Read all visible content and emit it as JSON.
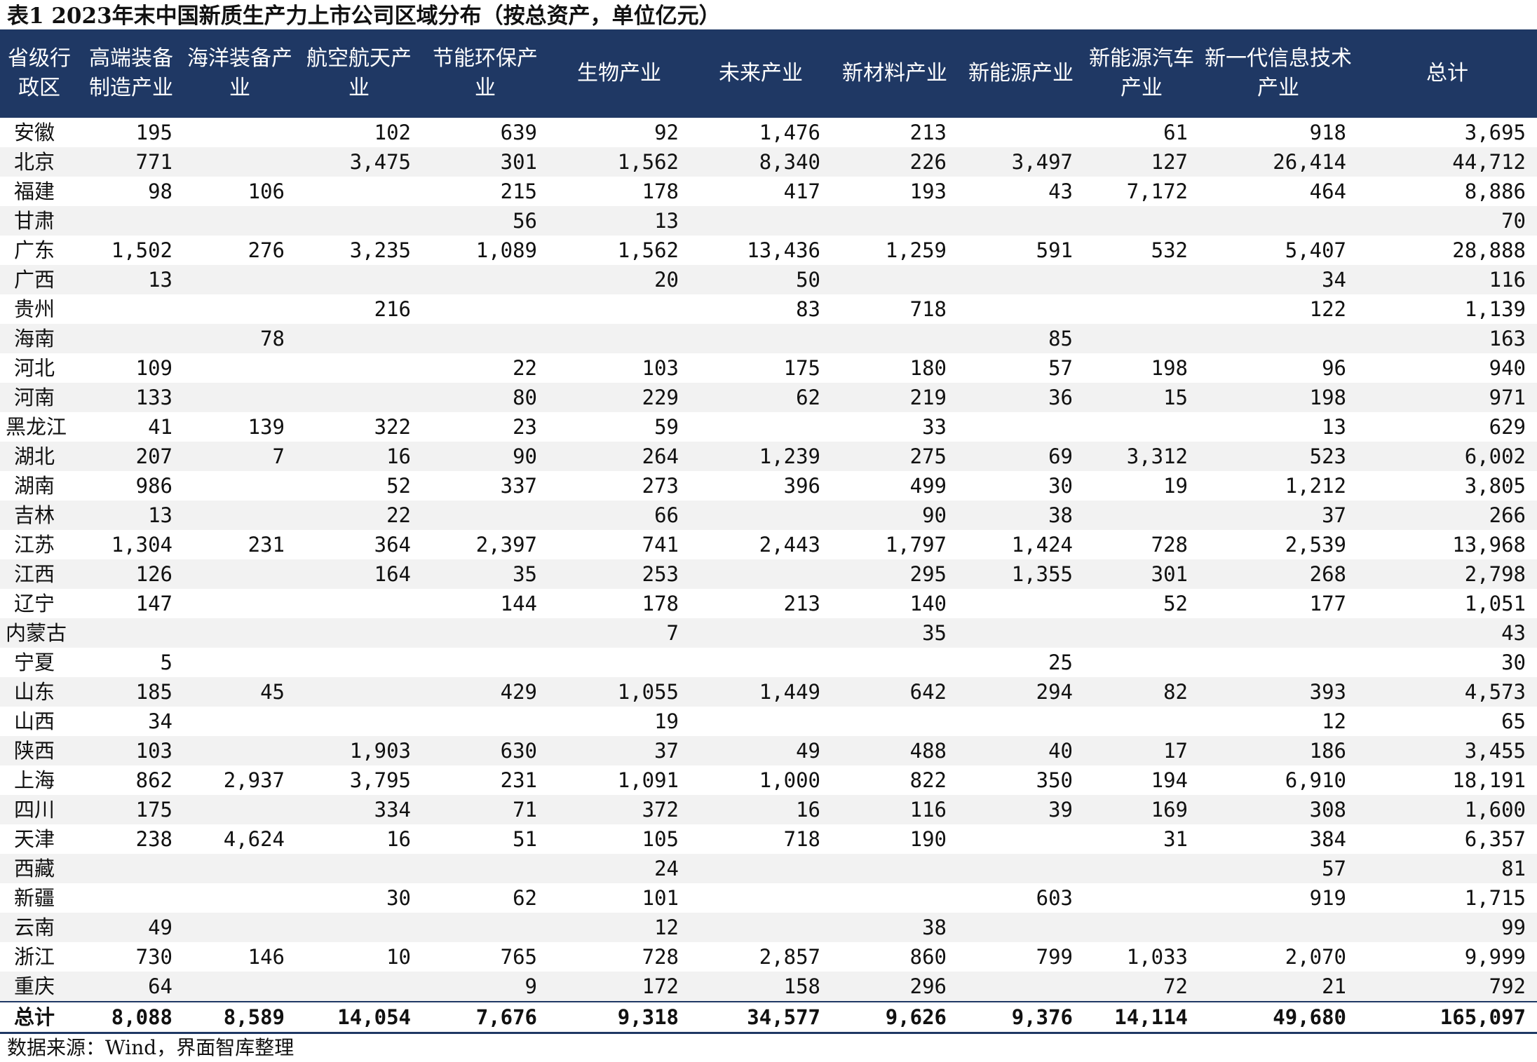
{
  "title": "表1 2023年末中国新质生产力上市公司区域分布（按总资产，单位亿元）",
  "columns": [
    "省级行政区",
    "高端装备制造产业",
    "海洋装备产业",
    "航空航天产业",
    "节能环保产业",
    "生物产业",
    "未来产业",
    "新材料产业",
    "新能源产业",
    "新能源汽车产业",
    "新一代信息技术产业",
    "总计"
  ],
  "rows": [
    [
      "安徽",
      "195",
      "",
      "102",
      "639",
      "92",
      "1,476",
      "213",
      "",
      "61",
      "918",
      "3,695"
    ],
    [
      "北京",
      "771",
      "",
      "3,475",
      "301",
      "1,562",
      "8,340",
      "226",
      "3,497",
      "127",
      "26,414",
      "44,712"
    ],
    [
      "福建",
      "98",
      "106",
      "",
      "215",
      "178",
      "417",
      "193",
      "43",
      "7,172",
      "464",
      "8,886"
    ],
    [
      "甘肃",
      "",
      "",
      "",
      "56",
      "13",
      "",
      "",
      "",
      "",
      "",
      "70"
    ],
    [
      "广东",
      "1,502",
      "276",
      "3,235",
      "1,089",
      "1,562",
      "13,436",
      "1,259",
      "591",
      "532",
      "5,407",
      "28,888"
    ],
    [
      "广西",
      "13",
      "",
      "",
      "",
      "20",
      "50",
      "",
      "",
      "",
      "34",
      "116"
    ],
    [
      "贵州",
      "",
      "",
      "216",
      "",
      "",
      "83",
      "718",
      "",
      "",
      "122",
      "1,139"
    ],
    [
      "海南",
      "",
      "78",
      "",
      "",
      "",
      "",
      "",
      "85",
      "",
      "",
      "163"
    ],
    [
      "河北",
      "109",
      "",
      "",
      "22",
      "103",
      "175",
      "180",
      "57",
      "198",
      "96",
      "940"
    ],
    [
      "河南",
      "133",
      "",
      "",
      "80",
      "229",
      "62",
      "219",
      "36",
      "15",
      "198",
      "971"
    ],
    [
      "黑龙江",
      "41",
      "139",
      "322",
      "23",
      "59",
      "",
      "33",
      "",
      "",
      "13",
      "629"
    ],
    [
      "湖北",
      "207",
      "7",
      "16",
      "90",
      "264",
      "1,239",
      "275",
      "69",
      "3,312",
      "523",
      "6,002"
    ],
    [
      "湖南",
      "986",
      "",
      "52",
      "337",
      "273",
      "396",
      "499",
      "30",
      "19",
      "1,212",
      "3,805"
    ],
    [
      "吉林",
      "13",
      "",
      "22",
      "",
      "66",
      "",
      "90",
      "38",
      "",
      "37",
      "266"
    ],
    [
      "江苏",
      "1,304",
      "231",
      "364",
      "2,397",
      "741",
      "2,443",
      "1,797",
      "1,424",
      "728",
      "2,539",
      "13,968"
    ],
    [
      "江西",
      "126",
      "",
      "164",
      "35",
      "253",
      "",
      "295",
      "1,355",
      "301",
      "268",
      "2,798"
    ],
    [
      "辽宁",
      "147",
      "",
      "",
      "144",
      "178",
      "213",
      "140",
      "",
      "52",
      "177",
      "1,051"
    ],
    [
      "内蒙古",
      "",
      "",
      "",
      "",
      "7",
      "",
      "35",
      "",
      "",
      "",
      "43"
    ],
    [
      "宁夏",
      "5",
      "",
      "",
      "",
      "",
      "",
      "",
      "25",
      "",
      "",
      "30"
    ],
    [
      "山东",
      "185",
      "45",
      "",
      "429",
      "1,055",
      "1,449",
      "642",
      "294",
      "82",
      "393",
      "4,573"
    ],
    [
      "山西",
      "34",
      "",
      "",
      "",
      "19",
      "",
      "",
      "",
      "",
      "12",
      "65"
    ],
    [
      "陕西",
      "103",
      "",
      "1,903",
      "630",
      "37",
      "49",
      "488",
      "40",
      "17",
      "186",
      "3,455"
    ],
    [
      "上海",
      "862",
      "2,937",
      "3,795",
      "231",
      "1,091",
      "1,000",
      "822",
      "350",
      "194",
      "6,910",
      "18,191"
    ],
    [
      "四川",
      "175",
      "",
      "334",
      "71",
      "372",
      "16",
      "116",
      "39",
      "169",
      "308",
      "1,600"
    ],
    [
      "天津",
      "238",
      "4,624",
      "16",
      "51",
      "105",
      "718",
      "190",
      "",
      "31",
      "384",
      "6,357"
    ],
    [
      "西藏",
      "",
      "",
      "",
      "",
      "24",
      "",
      "",
      "",
      "",
      "57",
      "81"
    ],
    [
      "新疆",
      "",
      "",
      "30",
      "62",
      "101",
      "",
      "",
      "603",
      "",
      "919",
      "1,715"
    ],
    [
      "云南",
      "49",
      "",
      "",
      "",
      "12",
      "",
      "38",
      "",
      "",
      "",
      "99"
    ],
    [
      "浙江",
      "730",
      "146",
      "10",
      "765",
      "728",
      "2,857",
      "860",
      "799",
      "1,033",
      "2,070",
      "9,999"
    ],
    [
      "重庆",
      "64",
      "",
      "",
      "9",
      "172",
      "158",
      "296",
      "",
      "72",
      "21",
      "792"
    ]
  ],
  "total": [
    "总计",
    "8,088",
    "8,589",
    "14,054",
    "7,676",
    "9,318",
    "34,577",
    "9,626",
    "9,376",
    "14,114",
    "49,680",
    "165,097"
  ],
  "source": "数据来源：Wind，界面智库整理",
  "colors": {
    "header_bg": "#1f3864",
    "header_text": "#ffffff",
    "alt_row": "#f2f2f2"
  }
}
